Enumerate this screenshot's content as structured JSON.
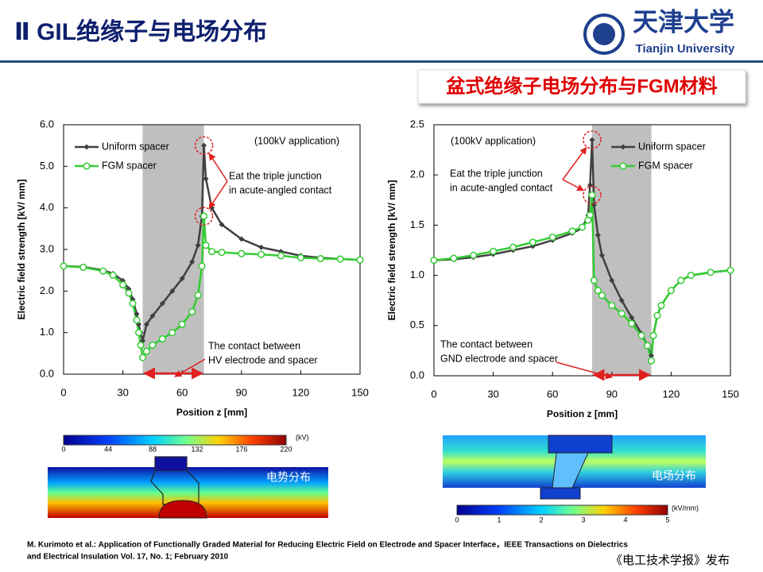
{
  "header": {
    "title": "Ⅱ GIL绝缘子与电场分布",
    "logo_cn": "天津大学",
    "logo_en": "Tianjin University"
  },
  "subtitle": "盆式绝缘子电场分布与FGM材料",
  "chart_data": [
    {
      "type": "line",
      "xlabel": "Position z [mm]",
      "ylabel": "Electric field strength [kV/ mm]",
      "xlim": [
        0,
        150
      ],
      "ylim": [
        0,
        6
      ],
      "xticks": [
        0,
        30,
        60,
        90,
        120,
        150
      ],
      "yticks": [
        {
          "value": 0,
          "label": "0.0"
        },
        {
          "value": 1,
          "label": "1.0"
        },
        {
          "value": 2,
          "label": "2.0"
        },
        {
          "value": 3,
          "label": "3.0"
        },
        {
          "value": 4,
          "label": "4.0"
        },
        {
          "value": 5,
          "label": "5.0"
        },
        {
          "value": 6,
          "label": "6.0"
        }
      ],
      "legend": "upper left",
      "shaded_x": [
        40,
        71
      ],
      "note": "(100kV application)",
      "triple_junction": [
        "Eat the triple junction",
        "in acute-angled contact"
      ],
      "contact": [
        "The contact between",
        "HV electrode and spacer"
      ],
      "x": [
        0,
        10,
        20,
        25,
        30,
        33,
        35,
        37,
        38,
        39,
        40,
        42,
        45,
        50,
        55,
        60,
        65,
        68,
        70,
        71,
        72,
        75,
        80,
        90,
        100,
        110,
        120,
        130,
        140,
        150
      ],
      "series": [
        {
          "name": "Uniform spacer",
          "color": "#404040",
          "marker": "diamond",
          "values": [
            2.6,
            2.58,
            2.5,
            2.42,
            2.25,
            2.05,
            1.8,
            1.45,
            1.2,
            1.0,
            0.8,
            1.2,
            1.4,
            1.7,
            2.0,
            2.3,
            2.7,
            3.1,
            3.8,
            5.5,
            4.7,
            4.0,
            3.6,
            3.25,
            3.05,
            2.95,
            2.85,
            2.8,
            2.77,
            2.75
          ]
        },
        {
          "name": "FGM spacer",
          "color": "#33cc33",
          "marker": "circle",
          "values": [
            2.6,
            2.57,
            2.48,
            2.38,
            2.15,
            1.95,
            1.7,
            1.3,
            1.0,
            0.7,
            0.4,
            0.55,
            0.7,
            0.85,
            1.0,
            1.2,
            1.5,
            1.9,
            2.6,
            3.8,
            3.1,
            2.95,
            2.93,
            2.9,
            2.88,
            2.85,
            2.8,
            2.78,
            2.77,
            2.75
          ]
        }
      ]
    },
    {
      "type": "line",
      "xlabel": "Position z [mm]",
      "ylabel": "Electric field strength [kV/ mm]",
      "xlim": [
        0,
        150
      ],
      "ylim": [
        0,
        2.5
      ],
      "xticks": [
        0,
        30,
        60,
        90,
        120,
        150
      ],
      "yticks": [
        {
          "value": 0,
          "label": "0.0"
        },
        0.5,
        {
          "value": 1,
          "label": "1.0"
        },
        1.5,
        {
          "value": 2,
          "label": "2.0"
        },
        2.5
      ],
      "legend": "upper right",
      "shaded_x": [
        80,
        110
      ],
      "note": "(100kV application)",
      "triple_junction": [
        "Eat the triple junction",
        "in acute-angled contact"
      ],
      "contact": [
        "The contact between",
        "GND electrode and spacer"
      ],
      "x": [
        0,
        10,
        20,
        30,
        40,
        50,
        60,
        70,
        75,
        78,
        79,
        80,
        81,
        83,
        85,
        90,
        95,
        100,
        105,
        108,
        110,
        111,
        113,
        115,
        120,
        125,
        130,
        140,
        150
      ],
      "series": [
        {
          "name": "Uniform spacer",
          "color": "#404040",
          "marker": "diamond",
          "values": [
            1.15,
            1.16,
            1.18,
            1.21,
            1.25,
            1.29,
            1.35,
            1.42,
            1.47,
            1.6,
            1.9,
            2.35,
            1.7,
            1.4,
            1.2,
            0.95,
            0.75,
            0.58,
            0.42,
            0.3,
            0.2,
            0.4,
            0.6,
            0.7,
            0.85,
            0.95,
            1.0,
            1.03,
            1.05
          ]
        },
        {
          "name": "FGM spacer",
          "color": "#33cc33",
          "marker": "circle",
          "values": [
            1.15,
            1.17,
            1.2,
            1.24,
            1.28,
            1.33,
            1.38,
            1.44,
            1.48,
            1.55,
            1.6,
            1.8,
            0.95,
            0.85,
            0.8,
            0.7,
            0.62,
            0.52,
            0.4,
            0.3,
            0.15,
            0.4,
            0.6,
            0.7,
            0.85,
            0.95,
            1.0,
            1.03,
            1.05
          ]
        }
      ]
    }
  ],
  "field_maps": [
    {
      "label": "电势分布",
      "unit": "(kV)",
      "colorbar_ticks": [
        0,
        44,
        88,
        132,
        176,
        220
      ]
    },
    {
      "label": "电场分布",
      "unit": "(kV/mm)",
      "colorbar_ticks": [
        0,
        1,
        2,
        3,
        4,
        5
      ]
    }
  ],
  "citation": [
    "M. Kurimoto et al.: Application of Functionally Graded Material for Reducing Electric Field on Electrode and Spacer Interface，IEEE Transactions on Dielectrics",
    "and Electrical Insulation  Vol. 17, No. 1; February 2010"
  ],
  "publisher": "《电工技术学报》发布"
}
